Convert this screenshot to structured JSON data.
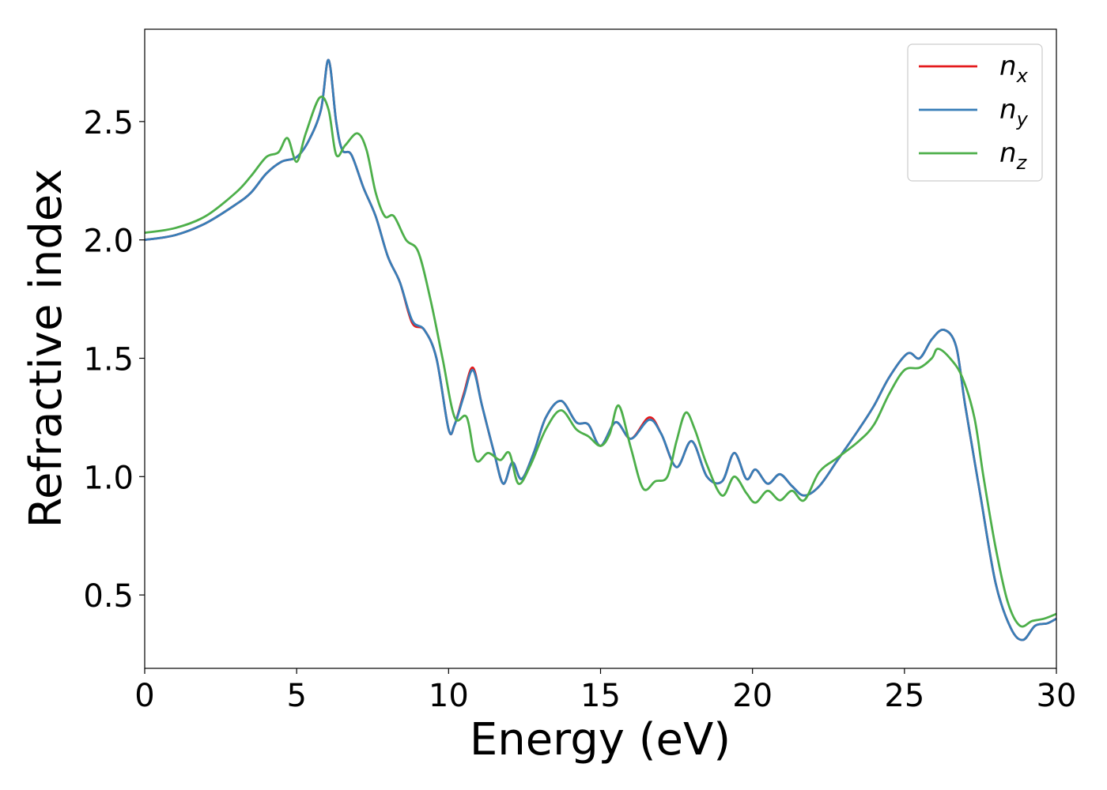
{
  "chart_data": {
    "type": "line",
    "xlabel": "Energy (eV)",
    "ylabel": "Refractive index",
    "xlim": [
      0,
      30
    ],
    "ylim": [
      0.19,
      2.89
    ],
    "xticks": [
      0,
      5,
      10,
      15,
      20,
      25,
      30
    ],
    "xtick_labels": [
      "0",
      "5",
      "10",
      "15",
      "20",
      "25",
      "30"
    ],
    "yticks": [
      0.5,
      1.0,
      1.5,
      2.0,
      2.5
    ],
    "ytick_labels": [
      "0.5",
      "1.0",
      "1.5",
      "2.0",
      "2.5"
    ],
    "grid": false,
    "legend_position": "top-right",
    "series": [
      {
        "name": "x",
        "legend_base": "n",
        "legend_sub": "x",
        "color": "#e41a1c",
        "x": [
          0,
          1,
          2,
          3,
          3.5,
          4,
          4.5,
          5,
          5.4,
          5.8,
          6.05,
          6.3,
          6.5,
          6.8,
          7.2,
          7.6,
          8,
          8.4,
          8.8,
          9.2,
          9.6,
          10,
          10.2,
          10.5,
          10.8,
          11.1,
          11.5,
          11.8,
          12.1,
          12.4,
          12.8,
          13.2,
          13.7,
          14.2,
          14.6,
          15,
          15.5,
          16,
          16.6,
          17,
          17.5,
          18,
          18.5,
          19,
          19.4,
          19.8,
          20.1,
          20.5,
          20.9,
          21.3,
          21.7,
          22.2,
          22.8,
          23.5,
          24,
          24.5,
          25.1,
          25.5,
          25.9,
          26.3,
          26.7,
          27,
          27.5,
          28,
          28.5,
          28.9,
          29.3,
          29.7,
          30
        ],
        "y": [
          2.0,
          2.02,
          2.07,
          2.15,
          2.2,
          2.28,
          2.33,
          2.35,
          2.42,
          2.55,
          2.76,
          2.5,
          2.38,
          2.36,
          2.22,
          2.1,
          1.93,
          1.82,
          1.65,
          1.62,
          1.5,
          1.2,
          1.22,
          1.35,
          1.46,
          1.3,
          1.1,
          0.97,
          1.06,
          0.99,
          1.1,
          1.25,
          1.32,
          1.23,
          1.22,
          1.13,
          1.23,
          1.16,
          1.25,
          1.18,
          1.04,
          1.15,
          1.0,
          0.98,
          1.1,
          0.99,
          1.03,
          0.97,
          1.01,
          0.96,
          0.92,
          0.96,
          1.07,
          1.2,
          1.3,
          1.42,
          1.52,
          1.5,
          1.58,
          1.62,
          1.55,
          1.3,
          0.92,
          0.55,
          0.36,
          0.31,
          0.37,
          0.38,
          0.4
        ]
      },
      {
        "name": "y",
        "legend_base": "n",
        "legend_sub": "y",
        "color": "#377eb8",
        "x": [
          0,
          1,
          2,
          3,
          3.5,
          4,
          4.5,
          5,
          5.4,
          5.8,
          6.05,
          6.3,
          6.5,
          6.8,
          7.2,
          7.6,
          8,
          8.4,
          8.8,
          9.2,
          9.6,
          10,
          10.2,
          10.5,
          10.8,
          11.1,
          11.5,
          11.8,
          12.1,
          12.4,
          12.8,
          13.2,
          13.7,
          14.2,
          14.6,
          15,
          15.5,
          16,
          16.6,
          17,
          17.5,
          18,
          18.5,
          19,
          19.4,
          19.8,
          20.1,
          20.5,
          20.9,
          21.3,
          21.7,
          22.2,
          22.8,
          23.5,
          24,
          24.5,
          25.1,
          25.5,
          25.9,
          26.3,
          26.7,
          27,
          27.5,
          28,
          28.5,
          28.9,
          29.3,
          29.7,
          30
        ],
        "y": [
          2.0,
          2.02,
          2.07,
          2.15,
          2.2,
          2.28,
          2.33,
          2.35,
          2.42,
          2.55,
          2.76,
          2.5,
          2.38,
          2.36,
          2.22,
          2.1,
          1.93,
          1.82,
          1.66,
          1.62,
          1.5,
          1.2,
          1.22,
          1.34,
          1.45,
          1.3,
          1.1,
          0.97,
          1.06,
          0.99,
          1.1,
          1.25,
          1.32,
          1.23,
          1.22,
          1.13,
          1.23,
          1.16,
          1.24,
          1.18,
          1.04,
          1.15,
          1.0,
          0.98,
          1.1,
          0.99,
          1.03,
          0.97,
          1.01,
          0.96,
          0.92,
          0.96,
          1.07,
          1.2,
          1.3,
          1.42,
          1.52,
          1.5,
          1.58,
          1.62,
          1.55,
          1.3,
          0.92,
          0.55,
          0.36,
          0.31,
          0.37,
          0.38,
          0.4
        ]
      },
      {
        "name": "z",
        "legend_base": "n",
        "legend_sub": "z",
        "color": "#4daf4a",
        "x": [
          0,
          1,
          2,
          3,
          3.5,
          4,
          4.4,
          4.7,
          5,
          5.3,
          5.75,
          6.05,
          6.3,
          6.6,
          7.0,
          7.3,
          7.6,
          7.9,
          8.2,
          8.6,
          9,
          9.4,
          9.8,
          10.2,
          10.6,
          10.9,
          11.3,
          11.7,
          12,
          12.3,
          12.7,
          13.2,
          13.7,
          14.2,
          14.6,
          15,
          15.3,
          15.6,
          16,
          16.4,
          16.8,
          17.2,
          17.5,
          17.8,
          18.1,
          18.5,
          19,
          19.4,
          19.8,
          20.1,
          20.5,
          20.9,
          21.3,
          21.7,
          22.2,
          22.8,
          23.5,
          24,
          24.5,
          25,
          25.5,
          25.9,
          26.1,
          26.5,
          26.9,
          27.3,
          27.6,
          28,
          28.4,
          28.8,
          29.2,
          29.6,
          30
        ],
        "y": [
          2.03,
          2.05,
          2.1,
          2.2,
          2.27,
          2.35,
          2.37,
          2.43,
          2.33,
          2.45,
          2.6,
          2.55,
          2.36,
          2.4,
          2.45,
          2.38,
          2.2,
          2.1,
          2.1,
          2.0,
          1.95,
          1.75,
          1.5,
          1.25,
          1.25,
          1.07,
          1.1,
          1.07,
          1.1,
          0.97,
          1.05,
          1.2,
          1.28,
          1.2,
          1.17,
          1.13,
          1.18,
          1.3,
          1.12,
          0.95,
          0.98,
          1.0,
          1.15,
          1.27,
          1.2,
          1.05,
          0.92,
          1.0,
          0.93,
          0.89,
          0.94,
          0.9,
          0.94,
          0.9,
          1.02,
          1.08,
          1.15,
          1.22,
          1.35,
          1.45,
          1.46,
          1.5,
          1.54,
          1.5,
          1.42,
          1.25,
          1.0,
          0.7,
          0.47,
          0.37,
          0.39,
          0.4,
          0.42
        ]
      }
    ]
  }
}
